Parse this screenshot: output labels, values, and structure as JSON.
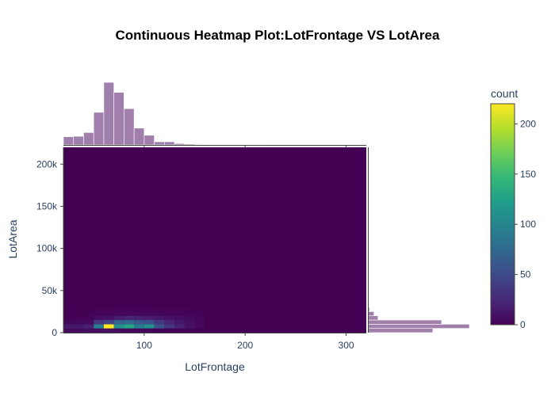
{
  "chart_data": {
    "type": "heatmap",
    "title": "Continuous Heatmap Plot:LotFrontage VS LotArea",
    "xlabel": "LotFrontage",
    "ylabel": "LotArea",
    "xlim": [
      20,
      320
    ],
    "ylim": [
      0,
      220000
    ],
    "x_ticks": [
      100,
      200,
      300
    ],
    "x_tick_labels": [
      "100",
      "200",
      "300"
    ],
    "y_ticks": [
      0,
      50000,
      100000,
      150000,
      200000
    ],
    "y_tick_labels": [
      "0",
      "50k",
      "100k",
      "150k",
      "200k"
    ],
    "colorbar": {
      "title": "count",
      "range": [
        0,
        220
      ],
      "ticks": [
        0,
        50,
        100,
        150,
        200
      ],
      "tick_labels": [
        "0",
        "50",
        "100",
        "150",
        "200"
      ],
      "colorscale": [
        "#440154",
        "#482878",
        "#3e4989",
        "#31688e",
        "#26828e",
        "#1f9e89",
        "#35b779",
        "#6ece58",
        "#b5de2b",
        "#fde725"
      ]
    },
    "heatmap_bins": {
      "x_edges": [
        20,
        30,
        40,
        50,
        60,
        70,
        80,
        90,
        100,
        110,
        120,
        130,
        140,
        150,
        160
      ],
      "y_edges": [
        0,
        5000,
        10000,
        15000,
        20000,
        25000,
        30000
      ],
      "counts": [
        [
          6,
          6,
          9,
          8,
          10,
          6,
          5,
          4,
          3,
          2,
          1,
          1,
          1,
          0
        ],
        [
          15,
          14,
          20,
          95,
          220,
          110,
          130,
          95,
          110,
          55,
          35,
          20,
          10,
          5
        ],
        [
          3,
          4,
          6,
          35,
          45,
          70,
          75,
          60,
          55,
          35,
          22,
          15,
          8,
          4
        ],
        [
          0,
          1,
          2,
          8,
          10,
          18,
          22,
          20,
          18,
          14,
          10,
          8,
          5,
          3
        ],
        [
          0,
          0,
          1,
          2,
          3,
          4,
          5,
          5,
          4,
          4,
          3,
          2,
          2,
          1
        ],
        [
          0,
          0,
          0,
          1,
          1,
          2,
          2,
          2,
          2,
          1,
          1,
          1,
          1,
          0
        ]
      ]
    },
    "x_marginal_histogram": {
      "bin_edges": [
        20,
        30,
        40,
        50,
        60,
        70,
        80,
        90,
        100,
        110,
        120,
        130,
        140,
        150,
        160,
        180,
        200,
        220,
        240,
        260,
        280,
        300,
        320
      ],
      "counts": [
        78,
        82,
        118,
        310,
        595,
        500,
        345,
        160,
        92,
        30,
        30,
        13,
        8,
        5,
        3,
        2,
        2,
        1,
        1,
        1,
        1,
        1
      ],
      "color": "#a07fac"
    },
    "y_marginal_histogram": {
      "bin_edges": [
        0,
        5000,
        10000,
        15000,
        20000,
        25000,
        30000,
        35000
      ],
      "counts": [
        320,
        500,
        363,
        50,
        30,
        8,
        3
      ],
      "color": "#a07fac"
    }
  }
}
